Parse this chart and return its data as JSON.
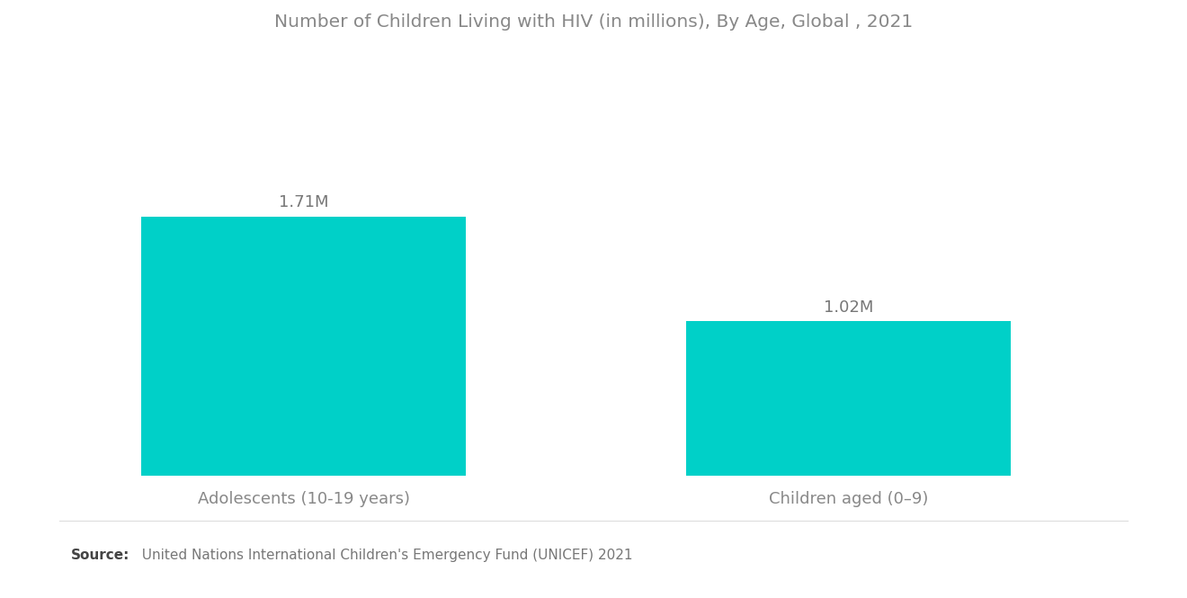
{
  "title": "Number of Children Living with HIV (in millions), By Age, Global , 2021",
  "categories": [
    "Adolescents (10-19 years)",
    "Children aged (0–9)"
  ],
  "values": [
    1.71,
    1.02
  ],
  "labels": [
    "1.71M",
    "1.02M"
  ],
  "bar_color": "#00D0C8",
  "background_color": "#ffffff",
  "title_color": "#888888",
  "label_color": "#777777",
  "xlabel_color": "#888888",
  "source_bold": "Source:",
  "source_text": "  United Nations International Children's Emergency Fund (UNICEF) 2021",
  "title_fontsize": 14.5,
  "label_fontsize": 13,
  "xlabel_fontsize": 13,
  "source_fontsize": 11,
  "ylim": [
    0,
    2.8
  ],
  "bar_width": 0.28,
  "x_positions": [
    0.25,
    0.72
  ]
}
